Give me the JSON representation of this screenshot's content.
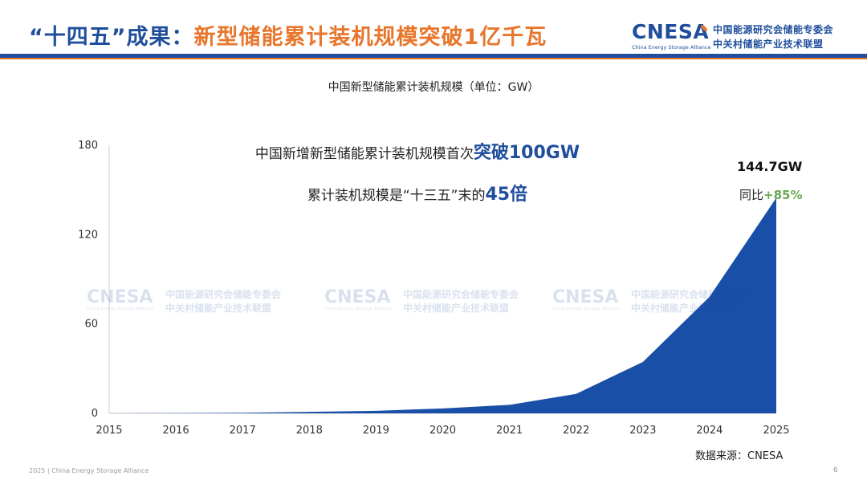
{
  "header": {
    "title_prefix": "“十四五”成果：",
    "title_main": "新型储能累计装机规模突破1亿千瓦"
  },
  "logo": {
    "wordmark": "CNESA",
    "subtitle": "China Energy Storage Alliance",
    "cn_line1": "中国能源研究会储能专委会",
    "cn_line2": "中关村储能产业技术联盟"
  },
  "colors": {
    "brand_blue": "#1f4e9c",
    "brand_orange": "#e8762c",
    "area_fill": "#1a4fa8",
    "growth_green": "#6aa84f"
  },
  "annotations": {
    "line1_text": "中国新增新型储能累计装机规模首次",
    "line1_highlight": "突破100GW",
    "line2_text": "累计装机规模是“十三五”末的",
    "line2_highlight": "45倍",
    "latest_value": "144.7GW",
    "yoy_label": "同比",
    "yoy_value": "+85%"
  },
  "chart_data": {
    "type": "area",
    "title": "中国新型储能累计装机规模（单位：GW）",
    "x": [
      "2015",
      "2016",
      "2017",
      "2018",
      "2019",
      "2020",
      "2021",
      "2022",
      "2023",
      "2024",
      "2025"
    ],
    "values": [
      0.1,
      0.2,
      0.4,
      1.0,
      1.7,
      3.3,
      5.7,
      13.1,
      34.5,
      78.3,
      144.7
    ],
    "ylim": [
      0,
      180
    ],
    "yticks": [
      0,
      60,
      120,
      180
    ],
    "grid": false,
    "legend": "none"
  },
  "source": "数据来源：CNESA",
  "footer": {
    "text": "2025  |  China Energy Storage Alliance",
    "page": "6"
  }
}
